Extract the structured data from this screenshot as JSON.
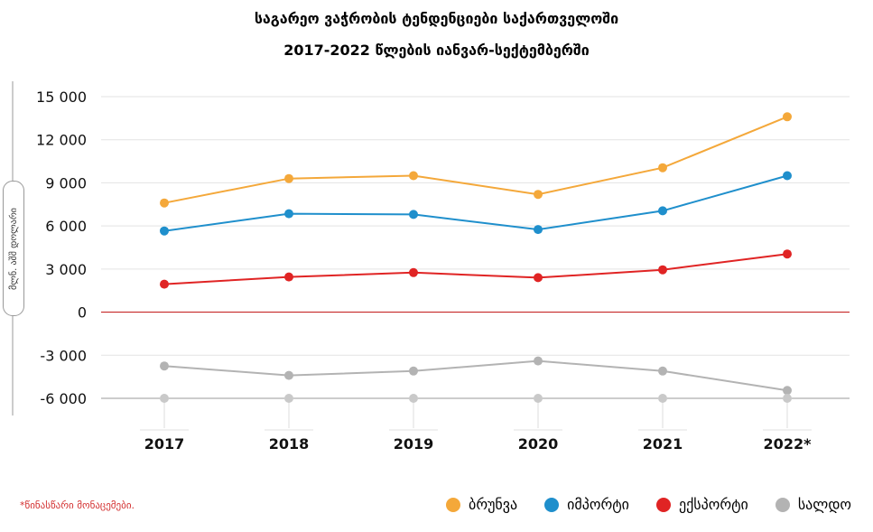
{
  "chart_data": {
    "type": "line",
    "title": "საგარეო ვაჭრობის ტენდენციები საქართველოში",
    "subtitle": "2017-2022 წლების იანვარ-სექტემბერში",
    "ylabel": "მლნ. აშშ დოლარი",
    "xlabel": "",
    "categories": [
      "2017",
      "2018",
      "2019",
      "2020",
      "2021",
      "2022*"
    ],
    "ylim": [
      -6000,
      15000
    ],
    "yticks": [
      15000,
      12000,
      9000,
      6000,
      3000,
      0,
      -3000,
      -6000
    ],
    "ytick_labels": [
      "15 000",
      "12 000",
      "9 000",
      "6 000",
      "3 000",
      "0",
      "-3 000",
      "-6 000"
    ],
    "series": [
      {
        "name": "ბრუნვა",
        "color": "#f4a83a",
        "values": [
          7600,
          9300,
          9500,
          8200,
          10050,
          13600
        ]
      },
      {
        "name": "იმპორტი",
        "color": "#1f8fcc",
        "values": [
          5650,
          6850,
          6800,
          5750,
          7050,
          9500
        ]
      },
      {
        "name": "ექსპორტი",
        "color": "#e02424",
        "values": [
          1950,
          2450,
          2750,
          2400,
          2950,
          4050
        ]
      },
      {
        "name": "სალდო",
        "color": "#b3b3b3",
        "values": [
          -3750,
          -4400,
          -4100,
          -3400,
          -4100,
          -5450
        ]
      }
    ],
    "zero_line_color": "#c62828",
    "footnote": "*წინასწარი მონაცემები.",
    "legend_position": "bottom-right"
  }
}
